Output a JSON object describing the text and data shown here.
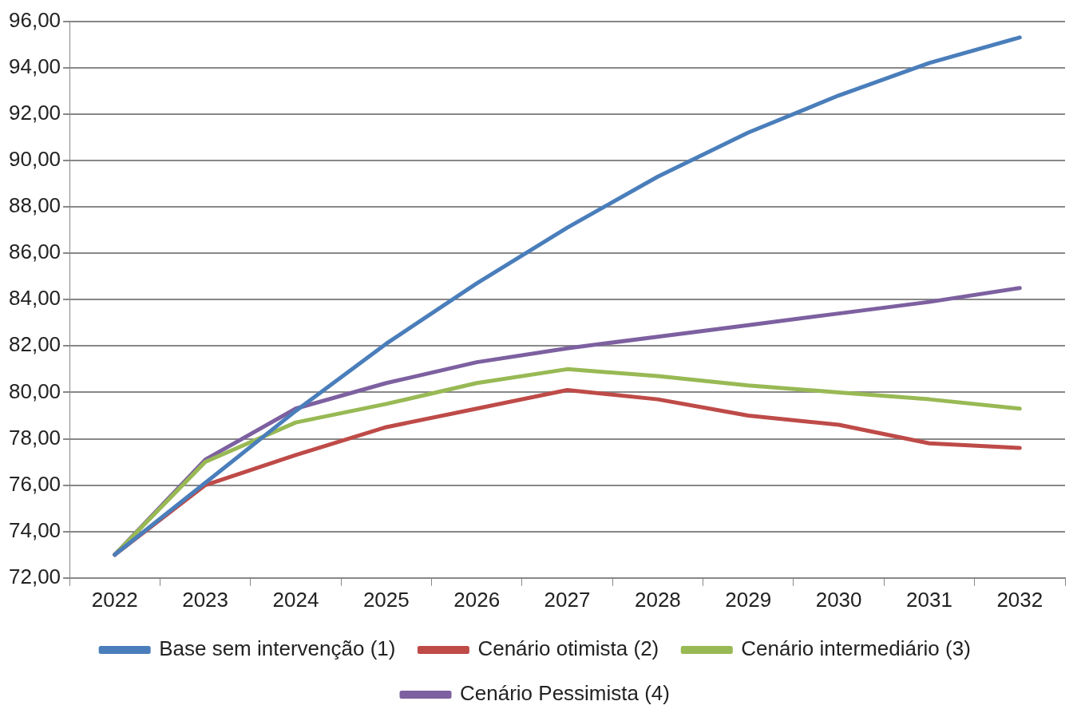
{
  "chart_data": {
    "type": "line",
    "categories": [
      "2022",
      "2023",
      "2024",
      "2025",
      "2026",
      "2027",
      "2028",
      "2029",
      "2030",
      "2031",
      "2032"
    ],
    "series": [
      {
        "name": "Base sem intervenção (1)",
        "color": "#4a7ebb",
        "values": [
          73.0,
          76.1,
          79.2,
          82.1,
          84.7,
          87.1,
          89.3,
          91.2,
          92.8,
          94.2,
          95.3
        ]
      },
      {
        "name": "Cenário otimista (2)",
        "color": "#be4b48",
        "values": [
          73.0,
          76.0,
          77.3,
          78.5,
          79.3,
          80.1,
          79.7,
          79.0,
          78.6,
          77.8,
          77.6
        ]
      },
      {
        "name": "Cenário intermediário (3)",
        "color": "#98b954",
        "values": [
          73.0,
          77.0,
          78.7,
          79.5,
          80.4,
          81.0,
          80.7,
          80.3,
          80.0,
          79.7,
          79.3
        ]
      },
      {
        "name": "Cenário Pessimista (4)",
        "color": "#7d60a0",
        "values": [
          73.0,
          77.1,
          79.3,
          80.4,
          81.3,
          81.9,
          82.4,
          82.9,
          83.4,
          83.9,
          84.5
        ]
      }
    ],
    "ylim": [
      72,
      96
    ],
    "yticks": [
      {
        "value": 72,
        "label": "72,00"
      },
      {
        "value": 74,
        "label": "74,00"
      },
      {
        "value": 76,
        "label": "76,00"
      },
      {
        "value": 78,
        "label": "78,00"
      },
      {
        "value": 80,
        "label": "80,00"
      },
      {
        "value": 82,
        "label": "82,00"
      },
      {
        "value": 84,
        "label": "84,00"
      },
      {
        "value": 86,
        "label": "86,00"
      },
      {
        "value": 88,
        "label": "88,00"
      },
      {
        "value": 90,
        "label": "90,00"
      },
      {
        "value": 92,
        "label": "92,00"
      },
      {
        "value": 94,
        "label": "94,00"
      },
      {
        "value": 96,
        "label": "96,00"
      }
    ],
    "grid": "y",
    "legend": "bottom",
    "marker": "none",
    "line_style": "solid"
  }
}
